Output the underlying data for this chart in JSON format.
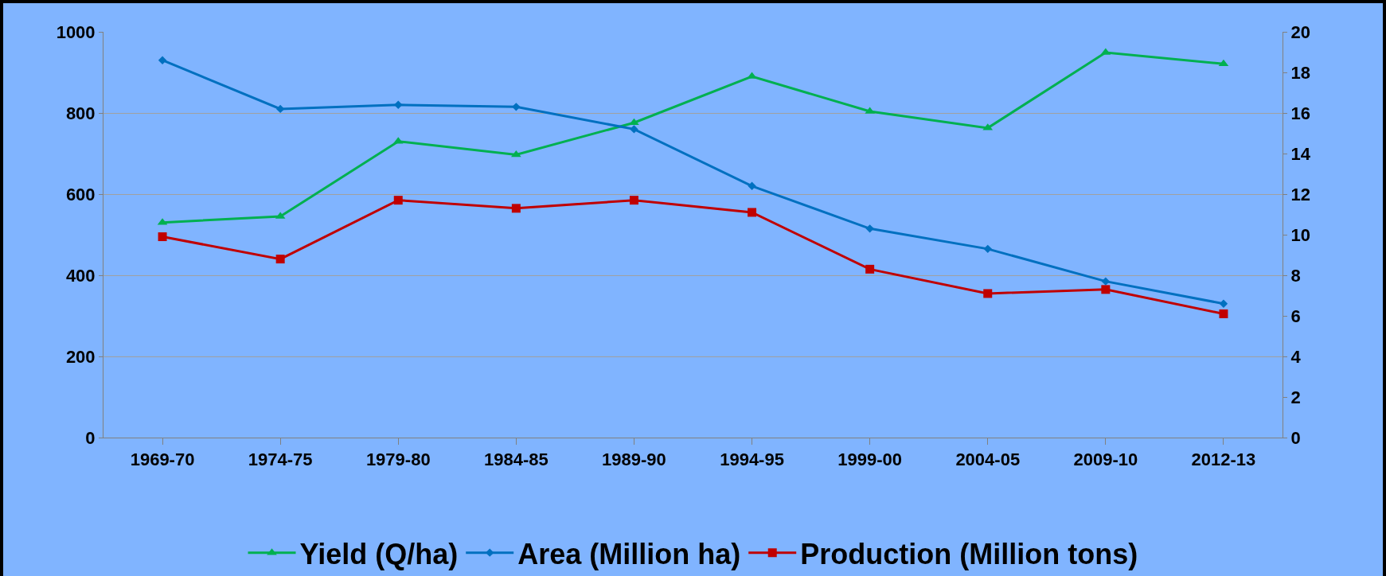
{
  "chart_data": {
    "type": "line",
    "categories": [
      "1969-70",
      "1974-75",
      "1979-80",
      "1984-85",
      "1989-90",
      "1994-95",
      "1999-00",
      "2004-05",
      "2009-10",
      "2012-13"
    ],
    "series": [
      {
        "name": "Yield (Q/ha)",
        "color": "#00b050",
        "marker": "triangle",
        "values": [
          530,
          545,
          730,
          697,
          776,
          890,
          804,
          763,
          949,
          921
        ]
      },
      {
        "name": "Area (Million ha)",
        "color": "#0070c0",
        "marker": "diamond",
        "axis": "y2",
        "values": [
          18.6,
          16.2,
          16.4,
          16.3,
          15.2,
          12.4,
          10.3,
          9.3,
          7.7,
          6.6
        ]
      },
      {
        "name": "Production (Million tons)",
        "color": "#c00000",
        "marker": "square",
        "axis": "y2",
        "values": [
          9.9,
          8.8,
          11.7,
          11.3,
          11.7,
          11.1,
          8.3,
          7.1,
          7.3,
          6.1
        ]
      }
    ],
    "ylim": [
      0,
      1000
    ],
    "yticks": [
      0,
      200,
      400,
      600,
      800,
      1000
    ],
    "y2lim": [
      0,
      20
    ],
    "y2ticks": [
      0,
      2,
      4,
      6,
      8,
      10,
      12,
      14,
      16,
      18,
      20
    ],
    "grid": "y",
    "legend": "bottom",
    "line_style": "solid"
  }
}
